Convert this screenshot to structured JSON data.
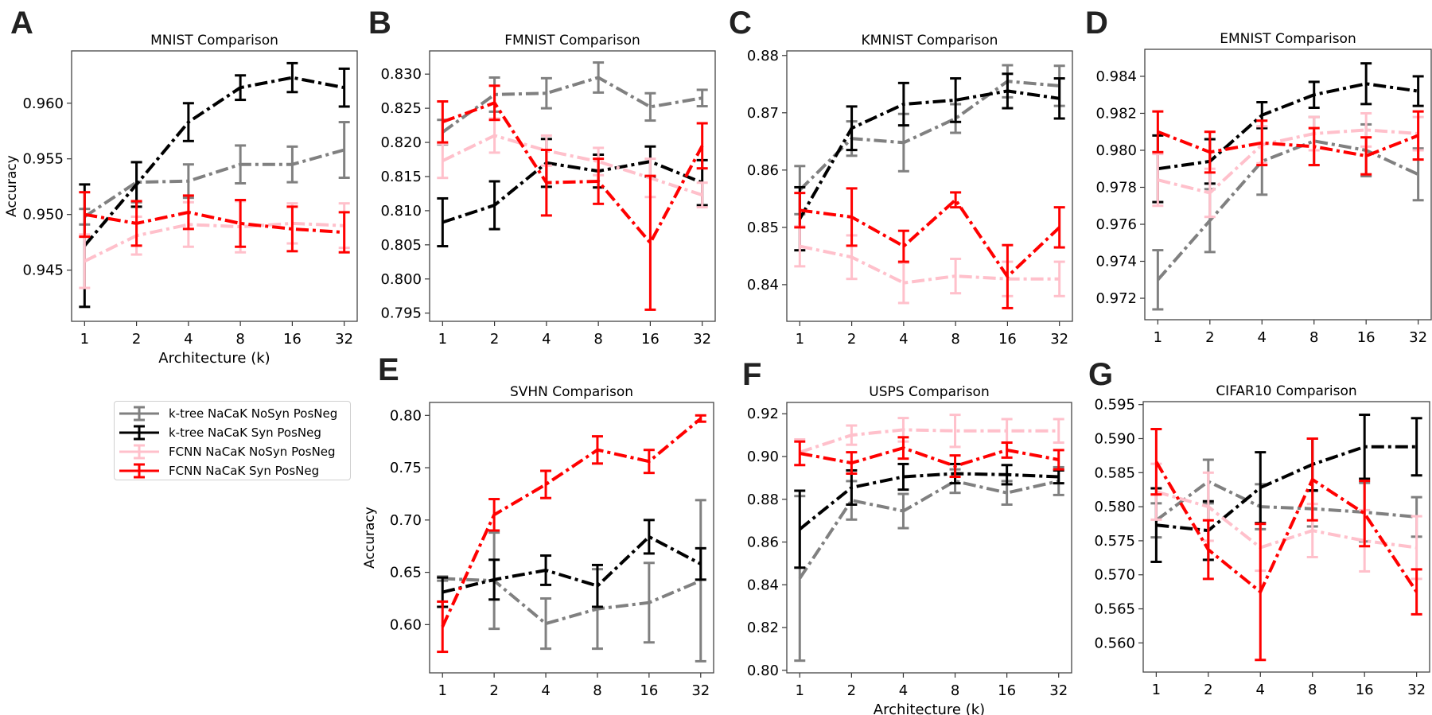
{
  "legend": {
    "items": [
      {
        "label": "k-tree NaCaK NoSyn PosNeg",
        "color": "#808080"
      },
      {
        "label": "k-tree NaCaK Syn PosNeg",
        "color": "#000000"
      },
      {
        "label": "FCNN NaCaK NoSyn PosNeg",
        "color": "#ffc0cb"
      },
      {
        "label": "FCNN NaCaK Syn PosNeg",
        "color": "#ff0000"
      }
    ]
  },
  "chart_data": [
    {
      "type": "line",
      "letter": "A",
      "title": "MNIST Comparison",
      "xlabel": "Architecture (k)",
      "ylabel": "Accuracy",
      "categories": [
        "1",
        "2",
        "4",
        "8",
        "16",
        "32"
      ],
      "ylim": [
        0.9404,
        0.9647
      ],
      "yticks": [
        0.945,
        0.95,
        0.955,
        0.96
      ],
      "ytick_labels": [
        "0.945",
        "0.950",
        "0.955",
        "0.960"
      ],
      "series": [
        {
          "name": "k-tree NaCaK NoSyn PosNeg",
          "values": [
            0.9498,
            0.9529,
            0.953,
            0.9545,
            0.9545,
            0.9558
          ],
          "err": [
            0.0007,
            0.0018,
            0.0015,
            0.0017,
            0.0016,
            0.0025
          ]
        },
        {
          "name": "k-tree NaCaK Syn PosNeg",
          "values": [
            0.9472,
            0.9527,
            0.9583,
            0.9614,
            0.9623,
            0.9614
          ],
          "err": [
            0.0055,
            0.002,
            0.0017,
            0.0011,
            0.0013,
            0.0017
          ]
        },
        {
          "name": "FCNN NaCaK NoSyn PosNeg",
          "values": [
            0.9458,
            0.9481,
            0.9491,
            0.9489,
            0.9492,
            0.949
          ],
          "err": [
            0.0024,
            0.0017,
            0.002,
            0.0023,
            0.0018,
            0.002
          ]
        },
        {
          "name": "FCNN NaCaK Syn PosNeg",
          "values": [
            0.95,
            0.9492,
            0.9502,
            0.9492,
            0.9487,
            0.9484
          ],
          "err": [
            0.002,
            0.002,
            0.0015,
            0.0021,
            0.002,
            0.0018
          ]
        }
      ]
    },
    {
      "type": "line",
      "letter": "B",
      "title": "FMNIST Comparison",
      "xlabel": "",
      "ylabel": "",
      "categories": [
        "1",
        "2",
        "4",
        "8",
        "16",
        "32"
      ],
      "ylim": [
        0.7938,
        0.8334
      ],
      "yticks": [
        0.795,
        0.8,
        0.805,
        0.81,
        0.815,
        0.82,
        0.825,
        0.83
      ],
      "ytick_labels": [
        "0.795",
        "0.800",
        "0.805",
        "0.810",
        "0.815",
        "0.820",
        "0.825",
        "0.830"
      ],
      "series": [
        {
          "name": "k-tree NaCaK NoSyn PosNeg",
          "values": [
            0.8215,
            0.827,
            0.8272,
            0.8295,
            0.8252,
            0.8265
          ],
          "err": [
            0.0018,
            0.0025,
            0.0022,
            0.0022,
            0.002,
            0.0012
          ]
        },
        {
          "name": "k-tree NaCaK Syn PosNeg",
          "values": [
            0.8083,
            0.8108,
            0.817,
            0.8158,
            0.8172,
            0.8141
          ],
          "err": [
            0.0035,
            0.0035,
            0.0035,
            0.0024,
            0.0022,
            0.0033
          ]
        },
        {
          "name": "FCNN NaCaK NoSyn PosNeg",
          "values": [
            0.8173,
            0.821,
            0.8188,
            0.8172,
            0.8148,
            0.8123
          ],
          "err": [
            0.0025,
            0.0025,
            0.0022,
            0.002,
            0.0028,
            0.0018
          ]
        },
        {
          "name": "FCNN NaCaK Syn PosNeg",
          "values": [
            0.823,
            0.8258,
            0.8141,
            0.8143,
            0.8053,
            0.8195
          ],
          "err": [
            0.003,
            0.0025,
            0.0048,
            0.0033,
            0.0098,
            0.0033
          ]
        }
      ]
    },
    {
      "type": "line",
      "letter": "C",
      "title": "KMNIST Comparison",
      "xlabel": "",
      "ylabel": "",
      "categories": [
        "1",
        "2",
        "4",
        "8",
        "16",
        "32"
      ],
      "ylim": [
        0.8336,
        0.8808
      ],
      "yticks": [
        0.84,
        0.85,
        0.86,
        0.87,
        0.88
      ],
      "ytick_labels": [
        "0.84",
        "0.85",
        "0.86",
        "0.87",
        "0.88"
      ],
      "series": [
        {
          "name": "k-tree NaCaK NoSyn PosNeg",
          "values": [
            0.8565,
            0.8655,
            0.8648,
            0.869,
            0.8755,
            0.8747
          ],
          "err": [
            0.0042,
            0.003,
            0.005,
            0.0025,
            0.0028,
            0.0035
          ]
        },
        {
          "name": "k-tree NaCaK Syn PosNeg",
          "values": [
            0.8515,
            0.8673,
            0.8715,
            0.8722,
            0.8738,
            0.8725
          ],
          "err": [
            0.0055,
            0.0038,
            0.0037,
            0.0038,
            0.003,
            0.0035
          ]
        },
        {
          "name": "FCNN NaCaK NoSyn PosNeg",
          "values": [
            0.8467,
            0.8448,
            0.8403,
            0.8415,
            0.841,
            0.841
          ],
          "err": [
            0.0035,
            0.0038,
            0.0035,
            0.003,
            0.003,
            0.003
          ]
        },
        {
          "name": "FCNN NaCaK Syn PosNeg",
          "values": [
            0.853,
            0.8518,
            0.8467,
            0.8548,
            0.8414,
            0.85
          ],
          "err": [
            0.003,
            0.005,
            0.0027,
            0.0013,
            0.0055,
            0.0035
          ]
        }
      ]
    },
    {
      "type": "line",
      "letter": "D",
      "title": "EMNIST Comparison",
      "xlabel": "",
      "ylabel": "",
      "categories": [
        "1",
        "2",
        "4",
        "8",
        "16",
        "32"
      ],
      "ylim": [
        0.97084,
        0.98546
      ],
      "yticks": [
        0.972,
        0.974,
        0.976,
        0.978,
        0.98,
        0.982,
        0.984
      ],
      "ytick_labels": [
        "0.972",
        "0.974",
        "0.976",
        "0.978",
        "0.980",
        "0.982",
        "0.984"
      ],
      "series": [
        {
          "name": "k-tree NaCaK NoSyn PosNeg",
          "values": [
            0.973,
            0.9762,
            0.9794,
            0.9805,
            0.98,
            0.9787
          ],
          "err": [
            0.0016,
            0.0017,
            0.0018,
            0.0013,
            0.0014,
            0.0014
          ]
        },
        {
          "name": "k-tree NaCaK Syn PosNeg",
          "values": [
            0.979,
            0.9794,
            0.9819,
            0.983,
            0.9836,
            0.9832
          ],
          "err": [
            0.0018,
            0.0012,
            0.0007,
            0.0007,
            0.0011,
            0.0008
          ]
        },
        {
          "name": "FCNN NaCaK NoSyn PosNeg",
          "values": [
            0.9784,
            0.9777,
            0.9803,
            0.9809,
            0.9811,
            0.9809
          ],
          "err": [
            0.0014,
            0.0013,
            0.001,
            0.0009,
            0.0009,
            0.0009
          ]
        },
        {
          "name": "FCNN NaCaK Syn PosNeg",
          "values": [
            0.981,
            0.9799,
            0.9804,
            0.9802,
            0.9797,
            0.9808
          ],
          "err": [
            0.0011,
            0.0011,
            0.0012,
            0.001,
            0.001,
            0.0013
          ]
        }
      ]
    },
    {
      "type": "line",
      "letter": "E",
      "title": "SVHN Comparison",
      "xlabel": "",
      "ylabel": "Accuracy",
      "categories": [
        "1",
        "2",
        "4",
        "8",
        "16",
        "32"
      ],
      "ylim": [
        0.5539,
        0.8124
      ],
      "yticks": [
        0.6,
        0.65,
        0.7,
        0.75,
        0.8
      ],
      "ytick_labels": [
        "0.60",
        "0.65",
        "0.70",
        "0.75",
        "0.80"
      ],
      "series": [
        {
          "name": "k-tree NaCaK NoSyn PosNeg",
          "values": [
            0.644,
            0.642,
            0.601,
            0.615,
            0.621,
            0.642
          ],
          "err": [
            0.002,
            0.046,
            0.024,
            0.038,
            0.038,
            0.077
          ]
        },
        {
          "name": "k-tree NaCaK Syn PosNeg",
          "values": [
            0.631,
            0.643,
            0.652,
            0.637,
            0.684,
            0.658
          ],
          "err": [
            0.014,
            0.019,
            0.014,
            0.02,
            0.016,
            0.015
          ]
        },
        {
          "name": "FCNN NaCaK Syn PosNeg",
          "values": [
            0.598,
            0.705,
            0.734,
            0.767,
            0.756,
            0.797
          ],
          "err": [
            0.024,
            0.015,
            0.013,
            0.013,
            0.011,
            0.003
          ]
        }
      ]
    },
    {
      "type": "line",
      "letter": "F",
      "title": "USPS Comparison",
      "xlabel": "Architecture (k)",
      "ylabel": "",
      "categories": [
        "1",
        "2",
        "4",
        "8",
        "16",
        "32"
      ],
      "ylim": [
        0.7988,
        0.9253
      ],
      "yticks": [
        0.8,
        0.82,
        0.84,
        0.86,
        0.88,
        0.9,
        0.92
      ],
      "ytick_labels": [
        "0.80",
        "0.82",
        "0.84",
        "0.86",
        "0.88",
        "0.90",
        "0.92"
      ],
      "series": [
        {
          "name": "k-tree NaCaK NoSyn PosNeg",
          "values": [
            0.843,
            0.8795,
            0.8745,
            0.8885,
            0.883,
            0.8885
          ],
          "err": [
            0.0385,
            0.009,
            0.008,
            0.0055,
            0.0055,
            0.0065
          ]
        },
        {
          "name": "k-tree NaCaK Syn PosNeg",
          "values": [
            0.866,
            0.8855,
            0.8905,
            0.892,
            0.8915,
            0.8905
          ],
          "err": [
            0.018,
            0.008,
            0.006,
            0.0045,
            0.0045,
            0.003
          ]
        },
        {
          "name": "FCNN NaCaK NoSyn PosNeg",
          "values": [
            0.902,
            0.91,
            0.9125,
            0.912,
            0.912,
            0.912
          ],
          "err": [
            0.006,
            0.0045,
            0.0055,
            0.0075,
            0.0055,
            0.0055
          ]
        },
        {
          "name": "FCNN NaCaK Syn PosNeg",
          "values": [
            0.9015,
            0.897,
            0.904,
            0.8955,
            0.903,
            0.8985
          ],
          "err": [
            0.0055,
            0.005,
            0.005,
            0.005,
            0.0035,
            0.0045
          ]
        }
      ]
    },
    {
      "type": "line",
      "letter": "G",
      "title": "CIFAR10 Comparison",
      "xlabel": "",
      "ylabel": "",
      "categories": [
        "1",
        "2",
        "4",
        "8",
        "16",
        "32"
      ],
      "ylim": [
        0.55572,
        0.59543
      ],
      "yticks": [
        0.56,
        0.565,
        0.57,
        0.575,
        0.58,
        0.585,
        0.59,
        0.595
      ],
      "ytick_labels": [
        "0.560",
        "0.565",
        "0.570",
        "0.575",
        "0.580",
        "0.585",
        "0.590",
        "0.595"
      ],
      "series": [
        {
          "name": "k-tree NaCaK NoSyn PosNeg",
          "values": [
            0.578,
            0.5837,
            0.58,
            0.5797,
            0.5792,
            0.5785
          ],
          "err": [
            0.0025,
            0.0032,
            0.0033,
            0.0026,
            0.0043,
            0.0029
          ]
        },
        {
          "name": "k-tree NaCaK Syn PosNeg",
          "values": [
            0.5773,
            0.5765,
            0.5828,
            0.5862,
            0.5888,
            0.5888
          ],
          "err": [
            0.0054,
            0.0043,
            0.0052,
            0.0038,
            0.0047,
            0.0042
          ]
        },
        {
          "name": "FCNN NaCaK NoSyn PosNeg",
          "values": [
            0.5822,
            0.58,
            0.574,
            0.5765,
            0.575,
            0.574
          ],
          "err": [
            0.0041,
            0.005,
            0.0034,
            0.0039,
            0.0045,
            0.0046
          ]
        },
        {
          "name": "FCNN NaCaK Syn PosNeg",
          "values": [
            0.5866,
            0.5737,
            0.5675,
            0.584,
            0.579,
            0.5675
          ],
          "err": [
            0.0048,
            0.0043,
            0.01,
            0.006,
            0.0048,
            0.0033
          ]
        }
      ]
    }
  ]
}
